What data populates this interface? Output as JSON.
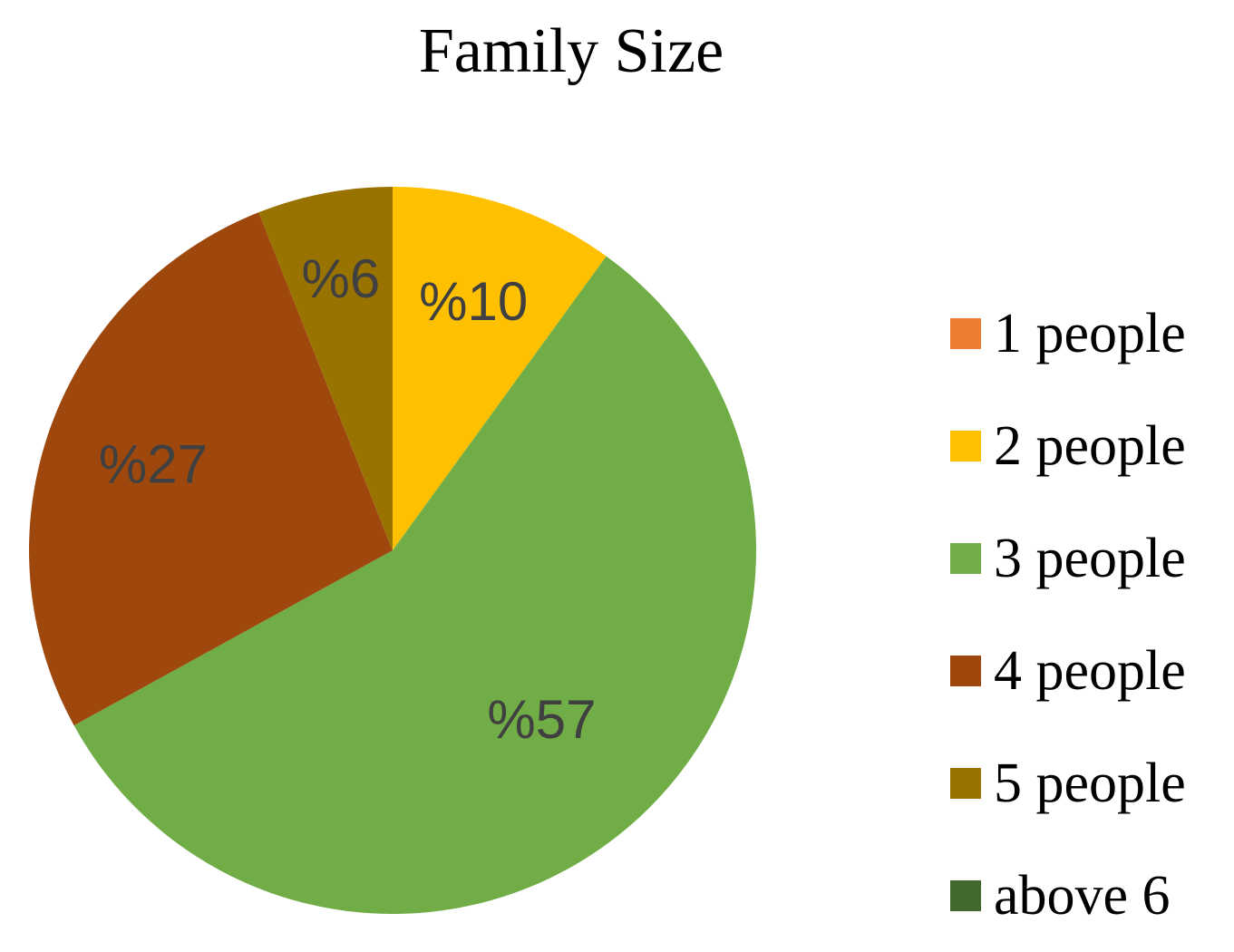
{
  "chart_data": {
    "type": "pie",
    "title": "Family Size",
    "categories": [
      "1 people",
      "2 people",
      "3 people",
      "4 people",
      "5 people",
      "above 6"
    ],
    "values": [
      0,
      10,
      57,
      27,
      6,
      0
    ],
    "data_labels": [
      "",
      "%10",
      "%57",
      "%27",
      "%6",
      ""
    ],
    "colors": [
      "#ED7D31",
      "#FFC000",
      "#70AD47",
      "#9E480E",
      "#997300",
      "#43682B"
    ],
    "start_angle_deg": 0,
    "direction": "clockwise",
    "legend_position": "right",
    "data_label_color": "#404040"
  }
}
